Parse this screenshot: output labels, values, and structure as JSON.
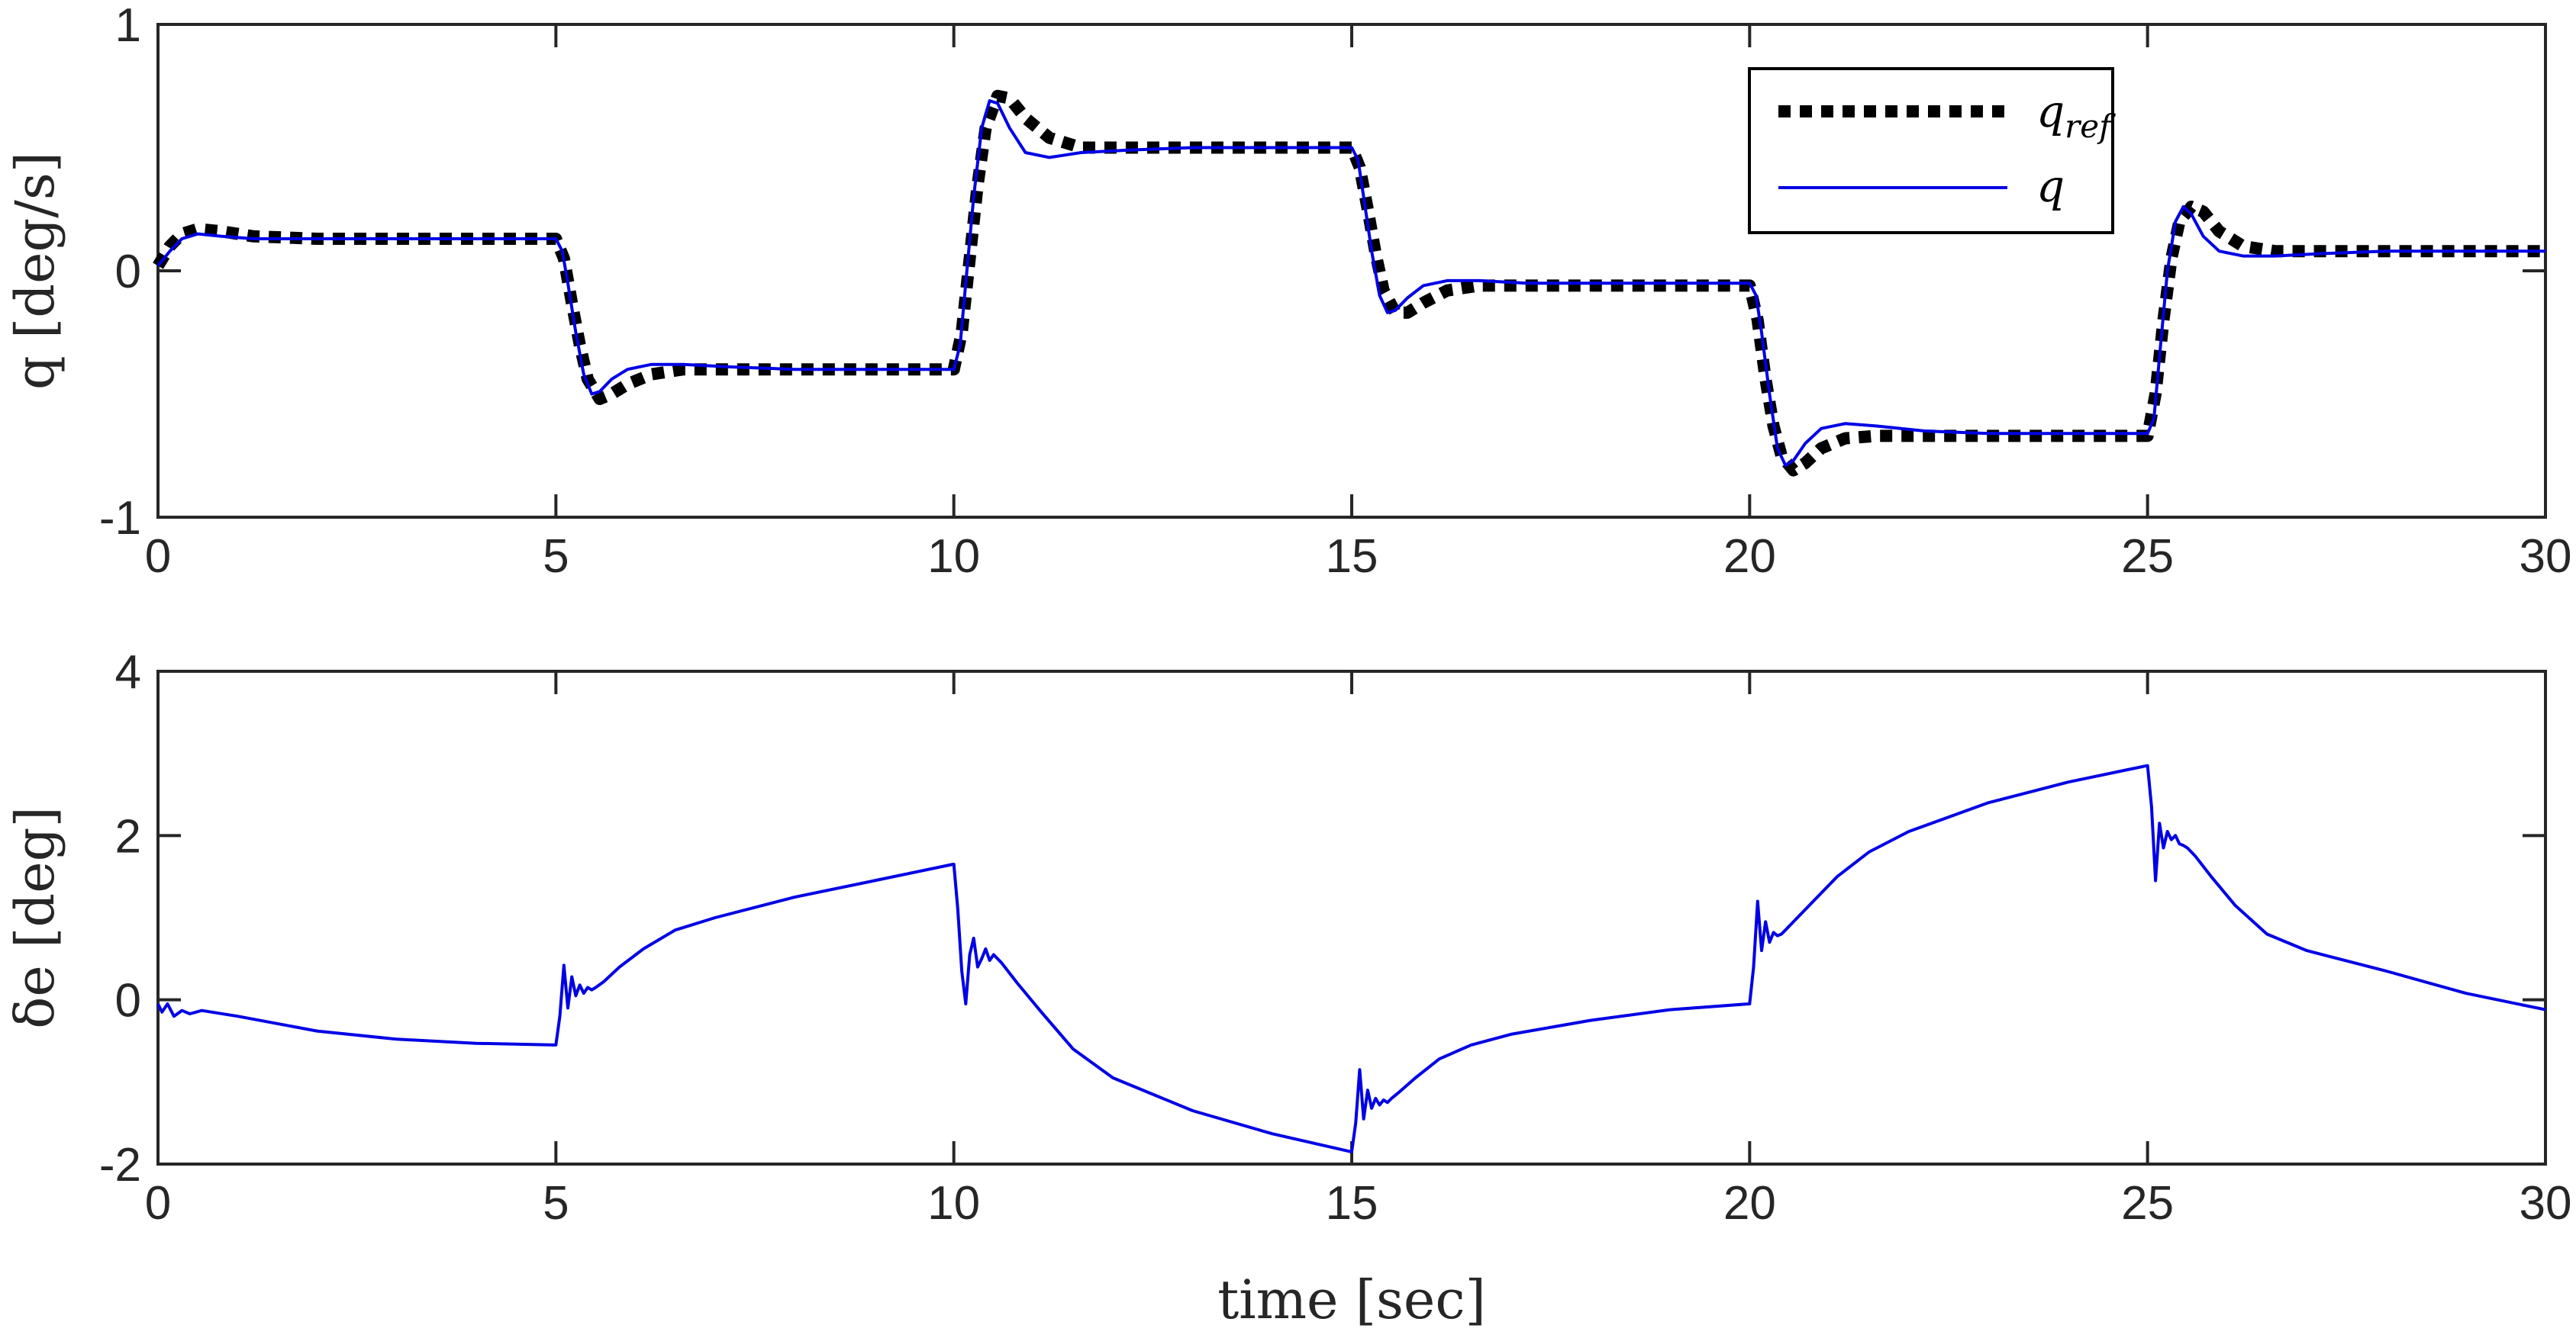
{
  "chart_data": [
    {
      "type": "line",
      "ylabel": "q [deg/s]",
      "xlim": [
        0,
        30
      ],
      "ylim": [
        -1,
        1
      ],
      "xticks": [
        "0",
        "5",
        "10",
        "15",
        "20",
        "25",
        "30"
      ],
      "yticks": [
        "-1",
        "0",
        "1"
      ],
      "legend_position": "top-right",
      "series": [
        {
          "name": "q_ref",
          "legend_label": "q",
          "legend_sub": "ref",
          "color": "#000000",
          "style": "dotted",
          "x": [
            0,
            0.15,
            0.3,
            0.5,
            0.8,
            1.2,
            2,
            4,
            5.0,
            5.1,
            5.2,
            5.3,
            5.4,
            5.55,
            5.7,
            5.9,
            6.2,
            6.6,
            7.2,
            8,
            10.0,
            10.1,
            10.2,
            10.3,
            10.4,
            10.55,
            10.7,
            10.9,
            11.2,
            11.6,
            12.2,
            13,
            15.0,
            15.1,
            15.2,
            15.3,
            15.4,
            15.55,
            15.7,
            15.9,
            16.2,
            16.6,
            17.2,
            18,
            20.0,
            20.1,
            20.2,
            20.3,
            20.4,
            20.55,
            20.7,
            20.9,
            21.2,
            21.6,
            22.2,
            23,
            25.0,
            25.1,
            25.2,
            25.3,
            25.4,
            25.55,
            25.7,
            25.9,
            26.2,
            26.6,
            27.2,
            28,
            30
          ],
          "y": [
            0.02,
            0.1,
            0.15,
            0.17,
            0.16,
            0.14,
            0.13,
            0.13,
            0.13,
            0.05,
            -0.13,
            -0.3,
            -0.44,
            -0.52,
            -0.5,
            -0.46,
            -0.42,
            -0.4,
            -0.4,
            -0.4,
            -0.4,
            -0.25,
            0.05,
            0.35,
            0.58,
            0.71,
            0.7,
            0.62,
            0.54,
            0.5,
            0.5,
            0.5,
            0.5,
            0.42,
            0.25,
            0.07,
            -0.08,
            -0.17,
            -0.17,
            -0.13,
            -0.08,
            -0.06,
            -0.06,
            -0.06,
            -0.06,
            -0.2,
            -0.44,
            -0.63,
            -0.75,
            -0.81,
            -0.78,
            -0.72,
            -0.68,
            -0.67,
            -0.67,
            -0.67,
            -0.67,
            -0.5,
            -0.2,
            0.05,
            0.2,
            0.26,
            0.24,
            0.16,
            0.1,
            0.08,
            0.08,
            0.08,
            0.08
          ]
        },
        {
          "name": "q",
          "legend_label": "q",
          "color": "#0000e6",
          "style": "solid",
          "x": [
            0,
            0.15,
            0.3,
            0.5,
            0.8,
            1.2,
            2,
            4,
            5.0,
            5.08,
            5.15,
            5.25,
            5.35,
            5.45,
            5.55,
            5.7,
            5.9,
            6.2,
            6.6,
            7.2,
            8,
            10.0,
            10.08,
            10.15,
            10.25,
            10.35,
            10.45,
            10.55,
            10.7,
            10.9,
            11.2,
            11.6,
            12.2,
            13,
            15.0,
            15.08,
            15.15,
            15.25,
            15.35,
            15.45,
            15.55,
            15.7,
            15.9,
            16.2,
            16.6,
            17.2,
            18,
            20.0,
            20.08,
            20.15,
            20.25,
            20.35,
            20.45,
            20.55,
            20.7,
            20.9,
            21.2,
            21.6,
            22.2,
            23,
            25.0,
            25.08,
            25.15,
            25.25,
            25.35,
            25.45,
            25.55,
            25.7,
            25.9,
            26.2,
            26.6,
            27.2,
            28,
            30
          ],
          "y": [
            0.02,
            0.08,
            0.13,
            0.15,
            0.14,
            0.13,
            0.13,
            0.13,
            0.13,
            0.08,
            -0.05,
            -0.25,
            -0.42,
            -0.5,
            -0.49,
            -0.44,
            -0.4,
            -0.38,
            -0.38,
            -0.39,
            -0.4,
            -0.4,
            -0.3,
            -0.05,
            0.3,
            0.58,
            0.69,
            0.68,
            0.58,
            0.48,
            0.46,
            0.48,
            0.49,
            0.5,
            0.5,
            0.45,
            0.3,
            0.08,
            -0.1,
            -0.17,
            -0.16,
            -0.11,
            -0.06,
            -0.04,
            -0.04,
            -0.05,
            -0.05,
            -0.05,
            -0.1,
            -0.25,
            -0.5,
            -0.72,
            -0.79,
            -0.77,
            -0.7,
            -0.64,
            -0.62,
            -0.63,
            -0.65,
            -0.66,
            -0.66,
            -0.6,
            -0.35,
            0.0,
            0.2,
            0.26,
            0.23,
            0.14,
            0.08,
            0.06,
            0.06,
            0.07,
            0.08,
            0.08
          ]
        }
      ]
    },
    {
      "type": "line",
      "xlabel": "time [sec]",
      "ylabel": "δe [deg]",
      "xlim": [
        0,
        30
      ],
      "ylim": [
        -2,
        4
      ],
      "xticks": [
        "0",
        "5",
        "10",
        "15",
        "20",
        "25",
        "30"
      ],
      "yticks": [
        "-2",
        "0",
        "2",
        "4"
      ],
      "series": [
        {
          "name": "δe",
          "color": "#0000e6",
          "style": "solid",
          "x": [
            0,
            0.05,
            0.12,
            0.2,
            0.3,
            0.4,
            0.55,
            1,
            2,
            3,
            4,
            4.99,
            5.0,
            5.05,
            5.1,
            5.15,
            5.2,
            5.25,
            5.3,
            5.35,
            5.4,
            5.45,
            5.5,
            5.6,
            5.8,
            6.1,
            6.5,
            7,
            8,
            9,
            9.99,
            10.0,
            10.05,
            10.1,
            10.15,
            10.2,
            10.25,
            10.3,
            10.35,
            10.4,
            10.45,
            10.5,
            10.6,
            10.8,
            11.1,
            11.5,
            12,
            13,
            14,
            14.99,
            15.0,
            15.05,
            15.1,
            15.15,
            15.2,
            15.25,
            15.3,
            15.35,
            15.4,
            15.45,
            15.5,
            15.6,
            15.8,
            16.1,
            16.5,
            17,
            18,
            19,
            19.99,
            20.0,
            20.05,
            20.1,
            20.15,
            20.2,
            20.25,
            20.3,
            20.35,
            20.4,
            20.45,
            20.5,
            20.6,
            20.8,
            21.1,
            21.5,
            22,
            23,
            24,
            24.99,
            25.0,
            25.05,
            25.1,
            25.15,
            25.2,
            25.25,
            25.3,
            25.35,
            25.4,
            25.45,
            25.5,
            25.6,
            25.8,
            26.1,
            26.5,
            27,
            28,
            29,
            30
          ],
          "y": [
            -0.05,
            -0.15,
            -0.05,
            -0.2,
            -0.13,
            -0.17,
            -0.13,
            -0.2,
            -0.38,
            -0.48,
            -0.53,
            -0.55,
            -0.55,
            -0.2,
            0.42,
            -0.1,
            0.28,
            0.05,
            0.18,
            0.08,
            0.15,
            0.12,
            0.15,
            0.22,
            0.4,
            0.62,
            0.85,
            1.0,
            1.25,
            1.45,
            1.65,
            1.65,
            1.1,
            0.35,
            -0.05,
            0.55,
            0.75,
            0.4,
            0.5,
            0.62,
            0.48,
            0.55,
            0.45,
            0.2,
            -0.15,
            -0.6,
            -0.95,
            -1.35,
            -1.63,
            -1.85,
            -1.85,
            -1.5,
            -0.85,
            -1.45,
            -1.1,
            -1.32,
            -1.2,
            -1.28,
            -1.22,
            -1.25,
            -1.2,
            -1.12,
            -0.95,
            -0.72,
            -0.55,
            -0.42,
            -0.25,
            -0.12,
            -0.05,
            -0.05,
            0.4,
            1.2,
            0.6,
            0.95,
            0.7,
            0.82,
            0.78,
            0.8,
            0.85,
            0.9,
            1.0,
            1.2,
            1.5,
            1.8,
            2.05,
            2.4,
            2.65,
            2.85,
            2.85,
            2.35,
            1.45,
            2.15,
            1.85,
            2.05,
            1.95,
            2.0,
            1.9,
            1.88,
            1.85,
            1.75,
            1.5,
            1.15,
            0.8,
            0.6,
            0.35,
            0.08,
            -0.12
          ]
        }
      ]
    }
  ]
}
